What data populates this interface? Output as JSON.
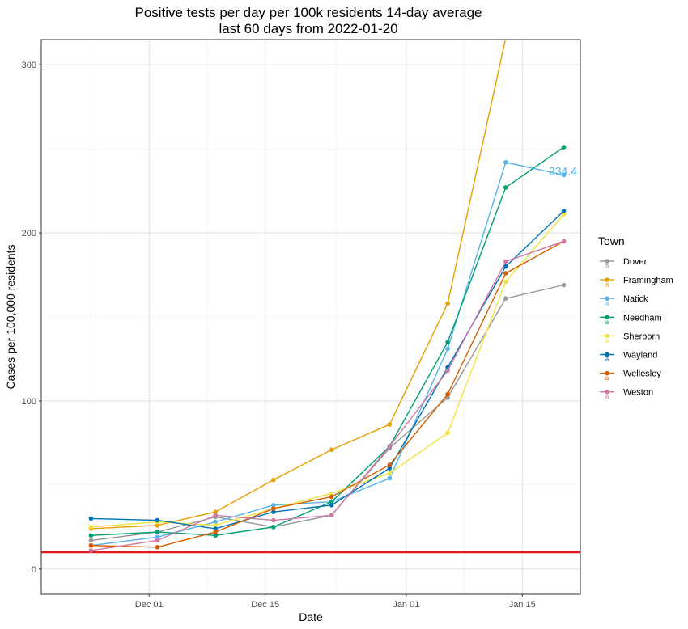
{
  "chart_data": {
    "type": "line",
    "title_line1": "Positive tests per day per 100k residents 14-day average",
    "title_line2": "last 60 days from 2022-01-20",
    "xlabel": "Date",
    "ylabel": "Cases per 100,000 residents",
    "x": [
      "2021-11-24",
      "2021-12-02",
      "2021-12-09",
      "2021-12-16",
      "2021-12-23",
      "2021-12-30",
      "2022-01-06",
      "2022-01-13",
      "2022-01-20"
    ],
    "xlim": [
      "2021-11-18",
      "2022-01-22"
    ],
    "ylim": [
      -15,
      315
    ],
    "x_ticks": [
      {
        "date": "2021-12-01",
        "label": "Dec 01"
      },
      {
        "date": "2021-12-15",
        "label": "Dec 15"
      },
      {
        "date": "2022-01-01",
        "label": "Jan 01"
      },
      {
        "date": "2022-01-15",
        "label": "Jan 15"
      }
    ],
    "y_ticks": [
      0,
      100,
      200,
      300
    ],
    "legend_title": "Town",
    "legend_position": "right",
    "grid": true,
    "threshold": {
      "value": 10,
      "color": "#e41a1c"
    },
    "annotation": {
      "text": "234.4",
      "x": "2022-01-20",
      "y": 234.4,
      "color": "#56b4e9"
    },
    "series": [
      {
        "name": "Dover",
        "color": "#999999",
        "values": [
          17,
          22,
          31,
          25,
          32,
          72,
          102,
          161,
          169
        ]
      },
      {
        "name": "Framingham",
        "color": "#e69f00",
        "values": [
          24,
          26,
          34,
          53,
          71,
          86,
          158,
          316,
          338
        ]
      },
      {
        "name": "Natick",
        "color": "#56b4e9",
        "values": [
          14,
          19,
          28,
          38,
          40,
          54,
          131,
          242,
          234.4
        ]
      },
      {
        "name": "Needham",
        "color": "#009e73",
        "values": [
          20,
          22,
          20,
          25,
          40,
          73,
          135,
          227,
          251
        ]
      },
      {
        "name": "Sherborn",
        "color": "#f0e442",
        "values": [
          25,
          28,
          26,
          36,
          45,
          57,
          81,
          171,
          211
        ]
      },
      {
        "name": "Wayland",
        "color": "#0072b2",
        "values": [
          30,
          29,
          24,
          34,
          38,
          60,
          120,
          180,
          213
        ]
      },
      {
        "name": "Wellesley",
        "color": "#d55e00",
        "values": [
          14,
          13,
          22,
          36,
          43,
          62,
          104,
          176,
          195
        ]
      },
      {
        "name": "Weston",
        "color": "#cc79a7",
        "values": [
          11,
          17,
          32,
          29,
          32,
          73,
          118,
          183,
          195
        ]
      }
    ]
  }
}
